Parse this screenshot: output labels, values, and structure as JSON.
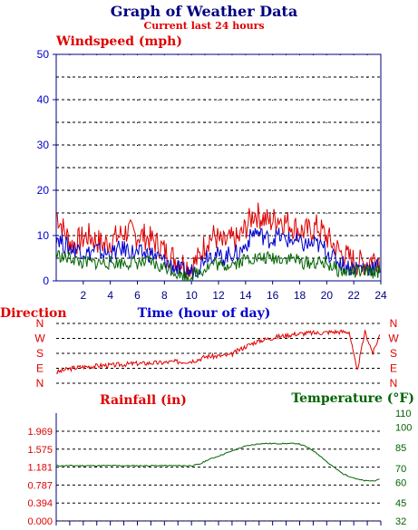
{
  "page": {
    "title": "Graph of Weather Data",
    "subtitle": "Current last 24 hours"
  },
  "colors": {
    "title": "#000080",
    "red": "#e00000",
    "blue": "#0000cc",
    "green": "#006400",
    "grid": "#000000"
  },
  "chart_data": [
    {
      "type": "line",
      "title": "",
      "ylabel": "Windspeed (mph)",
      "xlabel": "Time (hour of day)",
      "x_ticks": [
        "2",
        "4",
        "6",
        "8",
        "10",
        "12",
        "14",
        "16",
        "18",
        "20",
        "22",
        "24"
      ],
      "xlim": [
        0,
        24
      ],
      "ylim": [
        0,
        50
      ],
      "y_ticks": [
        "0",
        "10",
        "20",
        "30",
        "40",
        "50"
      ],
      "grid": true,
      "series": [
        {
          "color": "#e00000",
          "values": [
            15,
            11,
            8,
            9,
            10,
            9,
            8,
            9,
            10,
            11,
            10,
            10,
            9,
            8,
            6,
            5,
            4,
            3,
            5,
            9,
            10,
            8,
            9,
            9,
            12,
            15,
            14,
            13,
            14,
            13,
            12,
            11,
            11,
            12,
            10,
            8,
            6,
            5,
            4,
            4,
            5,
            5
          ]
        },
        {
          "color": "#0000cc",
          "values": [
            10,
            8,
            7,
            7,
            6,
            7,
            6,
            6,
            7,
            7,
            6,
            6,
            6,
            5,
            4,
            3,
            2,
            2,
            3,
            6,
            6,
            5,
            6,
            6,
            8,
            11,
            10,
            9,
            10,
            9,
            9,
            8,
            8,
            8,
            7,
            5,
            4,
            3,
            3,
            3,
            3,
            3
          ]
        },
        {
          "color": "#006400",
          "values": [
            6,
            5,
            5,
            4,
            4,
            4,
            4,
            4,
            4,
            4,
            4,
            4,
            4,
            3,
            3,
            2,
            1,
            1,
            2,
            3,
            4,
            3,
            4,
            4,
            5,
            5,
            5,
            5,
            5,
            5,
            5,
            4,
            4,
            4,
            4,
            3,
            2,
            2,
            2,
            2,
            2,
            2
          ]
        }
      ]
    },
    {
      "type": "line",
      "title": "",
      "ylabel": "Direction",
      "y_ticks": [
        "N",
        "W",
        "S",
        "E",
        "N"
      ],
      "xlim": [
        0,
        24
      ],
      "series": [
        {
          "color": "#e00000",
          "values": [
            0.18,
            0.22,
            0.25,
            0.27,
            0.28,
            0.29,
            0.3,
            0.3,
            0.31,
            0.32,
            0.33,
            0.33,
            0.34,
            0.34,
            0.35,
            0.36,
            0.36,
            0.37,
            0.4,
            0.45,
            0.45,
            0.46,
            0.47,
            0.55,
            0.62,
            0.68,
            0.72,
            0.75,
            0.78,
            0.8,
            0.82,
            0.83,
            0.84,
            0.84,
            0.85,
            0.86,
            0.86,
            0.86,
            0.2,
            0.86,
            0.5,
            0.86
          ]
        }
      ]
    },
    {
      "type": "line",
      "title": "",
      "ylabel": "Rainfall (in)",
      "y2label": "Temperature (°F)",
      "y_ticks": [
        "0.000",
        "0.394",
        "0.787",
        "1.181",
        "1.575",
        "1.969"
      ],
      "y2_ticks": [
        "32",
        "45",
        "60",
        "70",
        "85",
        "100",
        "110"
      ],
      "xlim": [
        0,
        24
      ],
      "series": [
        {
          "color": "#006400",
          "values": [
            72,
            72,
            72,
            72,
            72,
            72,
            72,
            72,
            72,
            72,
            72,
            72,
            72,
            72,
            72,
            72,
            72,
            72,
            72,
            73,
            76,
            78,
            80,
            82,
            84,
            86,
            87,
            88,
            88,
            88,
            88,
            88,
            88,
            86,
            83,
            79,
            74,
            70,
            66,
            64,
            62,
            61,
            61,
            62
          ]
        }
      ]
    }
  ]
}
